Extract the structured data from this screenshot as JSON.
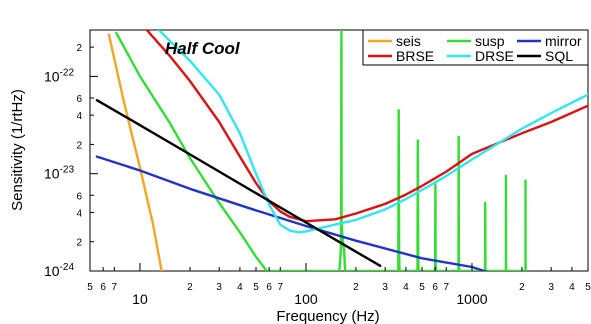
{
  "chart_data": {
    "type": "line",
    "title": "",
    "xlabel": "Frequency (Hz)",
    "ylabel": "Sensitivity (1/rtHz)",
    "xscale": "log",
    "yscale": "log",
    "xlim": [
      5,
      5000
    ],
    "ylim": [
      1e-24,
      3e-22
    ],
    "grid": false,
    "annotation": "Half Cool",
    "legend": {
      "placement": "top-right",
      "rows": [
        [
          "seis",
          "susp",
          "mirror"
        ],
        [
          "BRSE",
          "DRSE",
          "SQL"
        ]
      ]
    },
    "x_ticks": {
      "major": [
        {
          "v": 10,
          "label": "10"
        },
        {
          "v": 100,
          "label": "100"
        },
        {
          "v": 1000,
          "label": "1000"
        }
      ],
      "minor": [
        {
          "v": 5,
          "label": "5"
        },
        {
          "v": 6,
          "label": "6"
        },
        {
          "v": 7,
          "label": "7"
        },
        {
          "v": 20,
          "label": "2"
        },
        {
          "v": 30,
          "label": "3"
        },
        {
          "v": 40,
          "label": "4"
        },
        {
          "v": 50,
          "label": "5"
        },
        {
          "v": 60,
          "label": "6"
        },
        {
          "v": 70,
          "label": "7"
        },
        {
          "v": 200,
          "label": "2"
        },
        {
          "v": 300,
          "label": "3"
        },
        {
          "v": 400,
          "label": "4"
        },
        {
          "v": 500,
          "label": "5"
        },
        {
          "v": 600,
          "label": "6"
        },
        {
          "v": 700,
          "label": "7"
        },
        {
          "v": 2000,
          "label": "2"
        },
        {
          "v": 3000,
          "label": "3"
        },
        {
          "v": 4000,
          "label": "4"
        },
        {
          "v": 5000,
          "label": "5"
        }
      ]
    },
    "y_ticks": {
      "major": [
        {
          "v": 1e-24,
          "base": "10",
          "exp": "-24"
        },
        {
          "v": 1e-23,
          "base": "10",
          "exp": "-23"
        },
        {
          "v": 1e-22,
          "base": "10",
          "exp": "-22"
        }
      ],
      "minor": [
        {
          "v": 2e-24,
          "label": "2"
        },
        {
          "v": 4e-24,
          "label": "4"
        },
        {
          "v": 6e-24,
          "label": "6"
        },
        {
          "v": 2e-23,
          "label": "2"
        },
        {
          "v": 4e-23,
          "label": "4"
        },
        {
          "v": 6e-23,
          "label": "6"
        },
        {
          "v": 2e-22,
          "label": "2"
        }
      ]
    },
    "series": [
      {
        "name": "seis",
        "color": "#f5a623",
        "x": [
          6.5,
          8,
          10,
          12,
          13.5
        ],
        "y": [
          2.7e-22,
          5.5e-23,
          1.15e-23,
          3e-24,
          1e-24
        ]
      },
      {
        "name": "susp",
        "color": "#33dd33",
        "x": [
          7.2,
          10,
          15,
          20,
          30,
          40,
          50,
          58,
          159,
          162,
          163,
          163.5,
          164,
          166,
          170,
          172,
          360,
          362,
          364,
          366,
          368,
          470,
          472,
          474,
          476,
          478,
          600,
          602,
          604,
          606,
          608,
          830,
          832,
          834,
          836,
          838,
          1200,
          1202,
          1204,
          1206,
          1208,
          1600,
          1602,
          1604,
          1606,
          1608,
          2100,
          2102,
          2104,
          2106,
          2108
        ],
        "y": [
          2.8e-22,
          1e-22,
          3.4e-23,
          1.45e-23,
          5e-24,
          2.5e-24,
          1.4e-24,
          1e-24,
          1e-24,
          1.6e-24,
          3e-24,
          3.1e-22,
          3e-24,
          2.2e-24,
          1.6e-24,
          1e-24,
          1e-24,
          4.5e-23,
          1.6e-24,
          1e-24,
          1e-24,
          1e-24,
          2.2e-23,
          1.4e-24,
          1e-24,
          1e-24,
          1e-24,
          8e-24,
          1.3e-24,
          1e-24,
          1e-24,
          1e-24,
          2.4e-23,
          1.3e-24,
          1e-24,
          1e-24,
          1e-24,
          5e-24,
          1.1e-24,
          1e-24,
          1e-24,
          1e-24,
          9.5e-24,
          1.1e-24,
          1e-24,
          1e-24,
          1e-24,
          8.5e-24,
          1.1e-24,
          1e-24,
          1e-24
        ]
      },
      {
        "name": "mirror",
        "color": "#2233cc",
        "x": [
          5.5,
          10,
          20,
          50,
          100,
          200,
          500,
          1000,
          1300
        ],
        "y": [
          1.5e-23,
          1.08e-23,
          7e-24,
          4.2e-24,
          2.9e-24,
          2.05e-24,
          1.35e-24,
          1.1e-24,
          9.5e-25
        ]
      },
      {
        "name": "BRSE",
        "color": "#dd1111",
        "x": [
          11,
          15,
          20,
          30,
          40,
          50,
          60,
          70,
          80,
          100,
          150,
          200,
          300,
          400,
          500,
          700,
          1000,
          2000,
          3000,
          5000
        ],
        "y": [
          3e-22,
          1.65e-22,
          9e-23,
          3.4e-23,
          1.5e-23,
          8e-24,
          5.2e-24,
          4.1e-24,
          3.6e-24,
          3.25e-24,
          3.4e-24,
          3.9e-24,
          4.9e-24,
          6.1e-24,
          7.5e-24,
          1.05e-23,
          1.6e-23,
          2.6e-23,
          3.4e-23,
          5e-23
        ]
      },
      {
        "name": "DRSE",
        "color": "#33e5ee",
        "x": [
          13,
          20,
          30,
          40,
          50,
          60,
          70,
          80,
          90,
          100,
          120,
          150,
          200,
          300,
          400,
          500,
          700,
          1000,
          2000,
          3000,
          5000
        ],
        "y": [
          3e-22,
          1.45e-22,
          6.5e-23,
          2.6e-23,
          1e-23,
          4.8e-24,
          3e-24,
          2.6e-24,
          2.5e-24,
          2.55e-24,
          2.75e-24,
          3e-24,
          3.35e-24,
          4.3e-24,
          5.5e-24,
          6.8e-24,
          9.5e-24,
          1.4e-23,
          2.9e-23,
          4.2e-23,
          6.5e-23
        ]
      },
      {
        "name": "SQL",
        "color": "#000000",
        "x": [
          5.5,
          10,
          20,
          50,
          100,
          200,
          280
        ],
        "y": [
          5.7e-23,
          3.15e-23,
          1.58e-23,
          6.3e-24,
          3.15e-24,
          1.58e-24,
          1.13e-24
        ]
      }
    ]
  }
}
